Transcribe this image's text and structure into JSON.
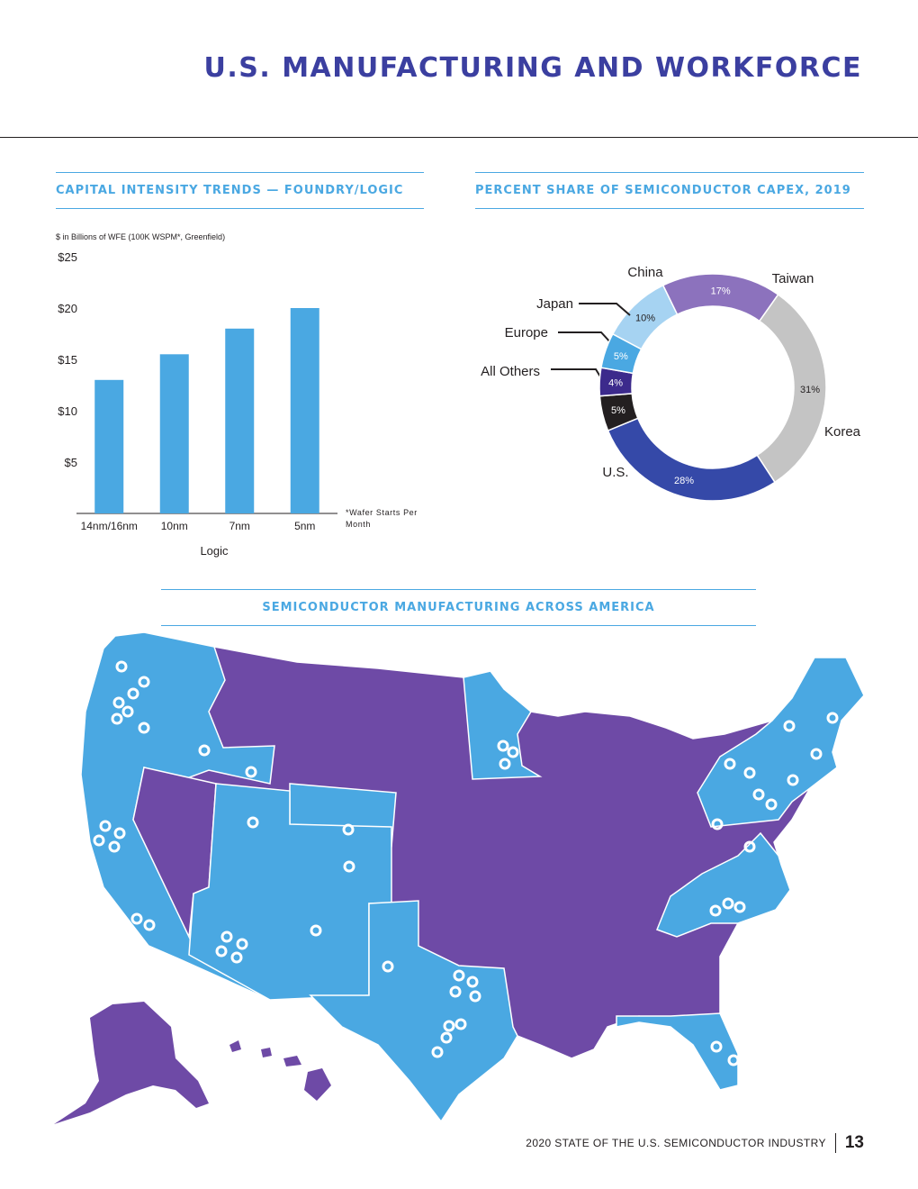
{
  "page": {
    "title": "U.S. MANUFACTURING AND WORKFORCE",
    "footer_text": "2020 STATE OF THE U.S. SEMICONDUCTOR INDUSTRY",
    "page_number": "13"
  },
  "sections": {
    "capital_title": "CAPITAL INTENSITY TRENDS — FOUNDRY/LOGIC",
    "capex_title": "PERCENT SHARE OF SEMICONDUCTOR CAPEX, 2019",
    "map_title": "SEMICONDUCTOR MANUFACTURING ACROSS AMERICA"
  },
  "bar_chart_notes": {
    "unit_note": "$ in Billions of WFE (100K WSPM*, Greenfield)",
    "footnote": "*Wafer Starts Per Month"
  },
  "colors": {
    "bar": "#4aa8e2",
    "title": "#3b3fa0",
    "us": "#3549a8",
    "korea": "#c4c4c4",
    "taiwan": "#8c72bd",
    "china": "#a6d3f2",
    "japan": "#4aa8e2",
    "europe": "#3c2a8c",
    "others": "#231f20",
    "state_blue": "#4aa8e2",
    "state_purple": "#6e4aa6"
  },
  "chart_data": [
    {
      "type": "bar",
      "title": "CAPITAL INTENSITY TRENDS — FOUNDRY/LOGIC",
      "categories": [
        "14nm/16nm",
        "10nm",
        "7nm",
        "5nm"
      ],
      "values": [
        13,
        15.5,
        18,
        20
      ],
      "xlabel": "Logic",
      "ylabel": "$ in Billions of WFE (100K WSPM*, Greenfield)",
      "ylim": [
        0,
        25
      ],
      "yticks": [
        5,
        10,
        15,
        20,
        25
      ],
      "ytick_labels": [
        "$5",
        "$10",
        "$15",
        "$20",
        "$25"
      ],
      "grid": false
    },
    {
      "type": "pie",
      "title": "PERCENT SHARE OF SEMICONDUCTOR CAPEX, 2019",
      "donut": true,
      "slices": [
        {
          "label": "China",
          "value": 10,
          "value_label": "10%",
          "color": "#a6d3f2"
        },
        {
          "label": "Taiwan",
          "value": 17,
          "value_label": "17%",
          "color": "#8c72bd"
        },
        {
          "label": "Korea",
          "value": 31,
          "value_label": "31%",
          "color": "#c4c4c4"
        },
        {
          "label": "U.S.",
          "value": 28,
          "value_label": "28%",
          "color": "#3549a8"
        },
        {
          "label": "All Others",
          "value": 5,
          "value_label": "5%",
          "color": "#231f20"
        },
        {
          "label": "Europe",
          "value": 4,
          "value_label": "4%",
          "color": "#3c2a8c"
        },
        {
          "label": "Japan",
          "value": 5,
          "value_label": "5%",
          "color": "#4aa8e2"
        }
      ]
    }
  ]
}
